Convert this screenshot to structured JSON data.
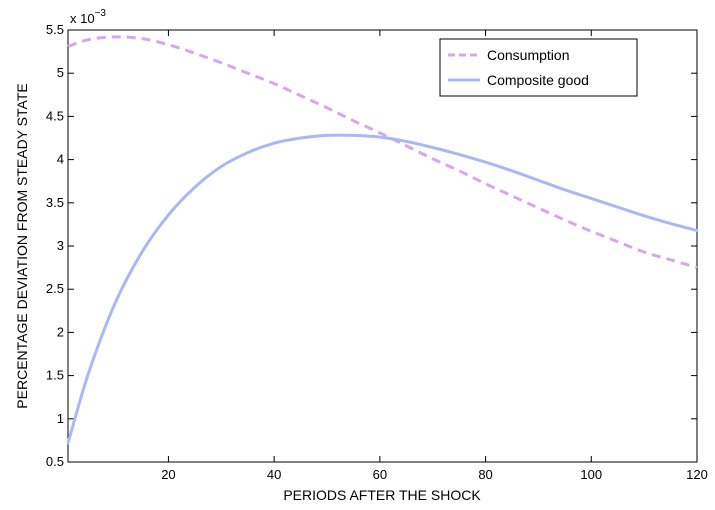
{
  "chart_data": {
    "type": "line",
    "title": "",
    "xlabel": "PERIODS AFTER THE SHOCK",
    "ylabel": "PERCENTAGE DEVIATION FROM STEADY STATE",
    "y_multiplier": "x 10",
    "y_exponent": "−3",
    "xlim": [
      1,
      120
    ],
    "ylim": [
      0.5,
      5.5
    ],
    "x_ticks": [
      20,
      40,
      60,
      80,
      100,
      120
    ],
    "y_ticks": [
      0.5,
      1,
      1.5,
      2,
      2.5,
      3,
      3.5,
      4,
      4.5,
      5,
      5.5
    ],
    "grid": false,
    "legend_position": "top-right",
    "series": [
      {
        "name": "Consumption",
        "style": "dashed",
        "color": "#d9a6ee",
        "x": [
          1,
          5,
          10,
          15,
          20,
          25,
          30,
          35,
          40,
          45,
          50,
          55,
          60,
          65,
          70,
          75,
          80,
          85,
          90,
          95,
          100,
          105,
          110,
          115,
          120
        ],
        "y": [
          5.31,
          5.39,
          5.42,
          5.4,
          5.33,
          5.23,
          5.12,
          5.0,
          4.88,
          4.74,
          4.6,
          4.45,
          4.31,
          4.16,
          4.01,
          3.87,
          3.72,
          3.58,
          3.44,
          3.3,
          3.17,
          3.05,
          2.93,
          2.84,
          2.75
        ]
      },
      {
        "name": "Composite good",
        "style": "solid",
        "color": "#aab8f5",
        "x": [
          1,
          5,
          10,
          15,
          20,
          25,
          30,
          35,
          40,
          45,
          50,
          55,
          60,
          65,
          70,
          75,
          80,
          85,
          90,
          95,
          100,
          105,
          110,
          115,
          120
        ],
        "y": [
          0.72,
          1.55,
          2.35,
          2.93,
          3.36,
          3.68,
          3.92,
          4.08,
          4.19,
          4.25,
          4.28,
          4.28,
          4.26,
          4.21,
          4.14,
          4.06,
          3.97,
          3.87,
          3.76,
          3.65,
          3.55,
          3.45,
          3.35,
          3.26,
          3.18
        ]
      }
    ]
  }
}
